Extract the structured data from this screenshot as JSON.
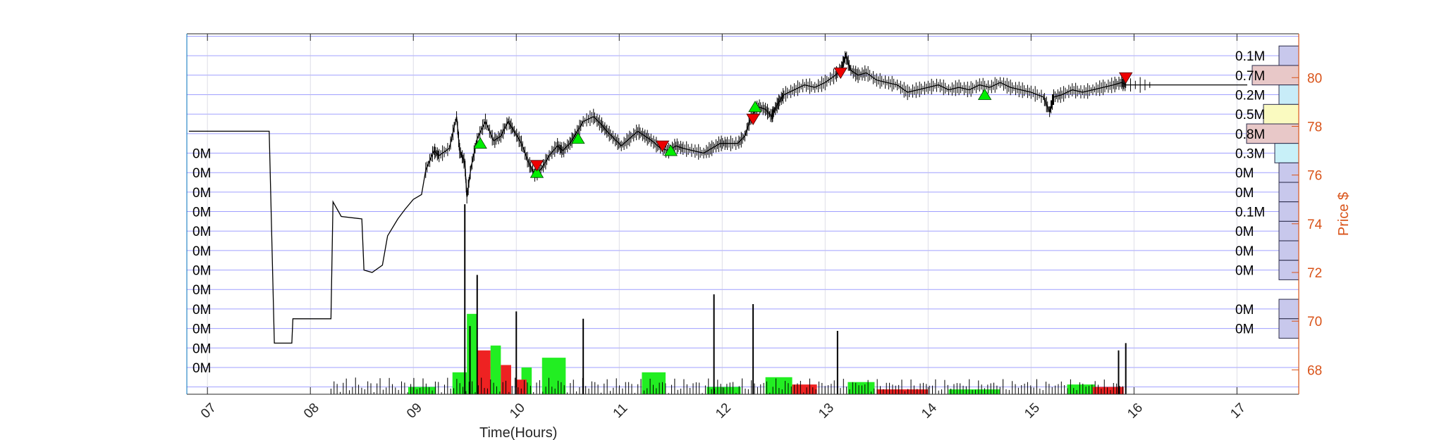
{
  "chart_data": {
    "type": "line",
    "title": "",
    "xlabel": "Time(Hours)",
    "ylabel_right": "Price $",
    "xlim": [
      6.8,
      17.6
    ],
    "ylim": [
      67.0,
      81.8
    ],
    "x_ticks": [
      "07",
      "08",
      "09",
      "10",
      "11",
      "12",
      "13",
      "14",
      "15",
      "16",
      "17"
    ],
    "x_tick_values": [
      7,
      8,
      9,
      10,
      11,
      12,
      13,
      14,
      15,
      16,
      17
    ],
    "y_ticks": [
      "68",
      "70",
      "72",
      "74",
      "76",
      "78",
      "80"
    ],
    "y_tick_values": [
      68,
      70,
      72,
      74,
      76,
      78,
      80
    ],
    "grid": true,
    "colors": {
      "price": "#000000",
      "grid": "#8080ff",
      "right_axis": "#d95319",
      "buy_marker": "#00ee00",
      "sell_marker": "#ee0000",
      "vol_up": "#22ee22",
      "vol_down": "#ee2222"
    },
    "price_series": {
      "name": "",
      "points": [
        [
          6.82,
          77.8
        ],
        [
          7.6,
          77.8
        ],
        [
          7.65,
          69.1
        ],
        [
          7.82,
          69.1
        ],
        [
          7.83,
          70.1
        ],
        [
          8.2,
          70.1
        ],
        [
          8.22,
          74.9
        ],
        [
          8.3,
          74.3
        ],
        [
          8.5,
          74.2
        ],
        [
          8.52,
          72.1
        ],
        [
          8.6,
          72.0
        ],
        [
          8.7,
          72.3
        ],
        [
          8.75,
          73.5
        ],
        [
          8.85,
          74.2
        ],
        [
          8.92,
          74.6
        ],
        [
          9.0,
          75.0
        ],
        [
          9.08,
          75.2
        ],
        [
          9.12,
          76.2
        ],
        [
          9.2,
          77.0
        ],
        [
          9.25,
          76.8
        ],
        [
          9.35,
          77.1
        ],
        [
          9.42,
          78.4
        ],
        [
          9.45,
          77.0
        ],
        [
          9.5,
          76.5
        ],
        [
          9.52,
          75.1
        ],
        [
          9.56,
          76.3
        ],
        [
          9.62,
          77.5
        ],
        [
          9.7,
          78.2
        ],
        [
          9.78,
          77.4
        ],
        [
          9.85,
          77.6
        ],
        [
          9.92,
          78.2
        ],
        [
          9.98,
          77.8
        ],
        [
          10.05,
          77.3
        ],
        [
          10.12,
          76.5
        ],
        [
          10.18,
          76.0
        ],
        [
          10.25,
          76.3
        ],
        [
          10.32,
          76.8
        ],
        [
          10.4,
          77.2
        ],
        [
          10.45,
          77.0
        ],
        [
          10.52,
          77.3
        ],
        [
          10.58,
          77.7
        ],
        [
          10.65,
          78.2
        ],
        [
          10.75,
          78.4
        ],
        [
          10.82,
          78.1
        ],
        [
          10.88,
          77.8
        ],
        [
          10.95,
          77.5
        ],
        [
          11.02,
          77.2
        ],
        [
          11.1,
          77.5
        ],
        [
          11.18,
          77.8
        ],
        [
          11.25,
          77.6
        ],
        [
          11.32,
          77.4
        ],
        [
          11.4,
          77.1
        ],
        [
          11.48,
          77.0
        ],
        [
          11.55,
          77.2
        ],
        [
          11.62,
          77.1
        ],
        [
          11.72,
          77.0
        ],
        [
          11.82,
          76.9
        ],
        [
          11.9,
          77.1
        ],
        [
          11.98,
          77.3
        ],
        [
          12.05,
          77.3
        ],
        [
          12.15,
          77.3
        ],
        [
          12.22,
          77.6
        ],
        [
          12.28,
          78.4
        ],
        [
          12.35,
          78.8
        ],
        [
          12.42,
          78.7
        ],
        [
          12.48,
          78.4
        ],
        [
          12.5,
          78.6
        ],
        [
          12.55,
          79.0
        ],
        [
          12.6,
          79.3
        ],
        [
          12.7,
          79.5
        ],
        [
          12.8,
          79.7
        ],
        [
          12.9,
          79.6
        ],
        [
          13.0,
          79.8
        ],
        [
          13.1,
          80.1
        ],
        [
          13.16,
          80.4
        ],
        [
          13.2,
          80.9
        ],
        [
          13.25,
          80.3
        ],
        [
          13.32,
          80.1
        ],
        [
          13.4,
          80.2
        ],
        [
          13.5,
          79.9
        ],
        [
          13.6,
          79.8
        ],
        [
          13.7,
          79.7
        ],
        [
          13.8,
          79.4
        ],
        [
          13.9,
          79.5
        ],
        [
          14.0,
          79.6
        ],
        [
          14.1,
          79.7
        ],
        [
          14.2,
          79.5
        ],
        [
          14.3,
          79.6
        ],
        [
          14.4,
          79.5
        ],
        [
          14.5,
          79.7
        ],
        [
          14.6,
          79.6
        ],
        [
          14.7,
          79.8
        ],
        [
          14.8,
          79.6
        ],
        [
          14.9,
          79.5
        ],
        [
          15.0,
          79.4
        ],
        [
          15.12,
          79.2
        ],
        [
          15.18,
          78.6
        ],
        [
          15.22,
          79.2
        ],
        [
          15.3,
          79.3
        ],
        [
          15.4,
          79.5
        ],
        [
          15.5,
          79.4
        ],
        [
          15.6,
          79.5
        ],
        [
          15.7,
          79.6
        ],
        [
          15.8,
          79.7
        ],
        [
          15.88,
          79.8
        ],
        [
          15.92,
          79.7
        ],
        [
          16.2,
          79.7
        ],
        [
          17.1,
          79.7
        ]
      ]
    },
    "buy_markers": [
      {
        "x": 9.65,
        "y": 77.3
      },
      {
        "x": 10.2,
        "y": 76.1
      },
      {
        "x": 10.6,
        "y": 77.5
      },
      {
        "x": 11.5,
        "y": 77.0
      },
      {
        "x": 12.32,
        "y": 78.8
      },
      {
        "x": 14.55,
        "y": 79.3
      }
    ],
    "sell_markers": [
      {
        "x": 10.2,
        "y": 76.4
      },
      {
        "x": 11.42,
        "y": 77.2
      },
      {
        "x": 12.3,
        "y": 78.3
      },
      {
        "x": 13.15,
        "y": 80.2
      },
      {
        "x": 15.92,
        "y": 80.0
      }
    ],
    "volume_profile": {
      "levels": [
        {
          "price": 80.9,
          "label": "0.1M",
          "value": 0.1,
          "color": "#c8c8ec"
        },
        {
          "price": 80.1,
          "label": "0.7M",
          "value": 0.7,
          "color": "#e8c8c8"
        },
        {
          "price": 79.3,
          "label": "0.2M",
          "value": 0.2,
          "color": "#c8ecf8"
        },
        {
          "price": 78.5,
          "label": "0.5M",
          "value": 0.5,
          "color": "#fafac0"
        },
        {
          "price": 77.7,
          "label": "0.8M",
          "value": 0.8,
          "color": "#e8c8c8"
        },
        {
          "price": 76.9,
          "label": "0.3M",
          "value": 0.3,
          "color": "#c8f0f8"
        },
        {
          "price": 76.1,
          "label": "0M",
          "value": 0.05,
          "color": "#c8c8ec"
        },
        {
          "price": 75.3,
          "label": "0M",
          "value": 0.05,
          "color": "#c8c8ec"
        },
        {
          "price": 74.5,
          "label": "0.1M",
          "value": 0.1,
          "color": "#c8c8ec"
        },
        {
          "price": 73.7,
          "label": "0M",
          "value": 0.05,
          "color": "#c8c8ec"
        },
        {
          "price": 72.9,
          "label": "0M",
          "value": 0.05,
          "color": "#c8c8ec"
        },
        {
          "price": 72.1,
          "label": "0M",
          "value": 0.05,
          "color": "#c8c8ec"
        },
        {
          "price": 70.5,
          "label": "0M",
          "value": 0.05,
          "color": "#c8c8ec"
        },
        {
          "price": 69.7,
          "label": "0M",
          "value": 0.05,
          "color": "#c8c8ec"
        }
      ],
      "left_labels": [
        {
          "price": 76.9,
          "label": "0M"
        },
        {
          "price": 76.1,
          "label": "0M"
        },
        {
          "price": 75.3,
          "label": "0M"
        },
        {
          "price": 74.5,
          "label": "0M"
        },
        {
          "price": 73.7,
          "label": "0M"
        },
        {
          "price": 72.9,
          "label": "0M"
        },
        {
          "price": 72.1,
          "label": "0M"
        },
        {
          "price": 71.3,
          "label": "0M"
        },
        {
          "price": 70.5,
          "label": "0M"
        },
        {
          "price": 69.7,
          "label": "0M"
        },
        {
          "price": 68.9,
          "label": "0M"
        },
        {
          "price": 68.1,
          "label": "0M"
        }
      ]
    },
    "volume_spikes": [
      [
        9.5,
        74.8
      ],
      [
        9.62,
        71.9
      ],
      [
        10.0,
        70.4
      ],
      [
        10.65,
        70.1
      ],
      [
        11.92,
        71.1
      ],
      [
        12.3,
        70.7
      ],
      [
        13.12,
        69.6
      ],
      [
        15.92,
        69.1
      ],
      [
        15.85,
        68.8
      ],
      [
        9.55,
        69.8
      ]
    ],
    "volume_blocks": [
      {
        "x0": 9.38,
        "x1": 9.52,
        "top": 67.9,
        "dir": "up"
      },
      {
        "x0": 9.52,
        "x1": 9.62,
        "top": 70.3,
        "dir": "up"
      },
      {
        "x0": 9.62,
        "x1": 9.75,
        "top": 68.8,
        "dir": "down"
      },
      {
        "x0": 9.75,
        "x1": 9.85,
        "top": 69.0,
        "dir": "up"
      },
      {
        "x0": 9.85,
        "x1": 9.95,
        "top": 68.2,
        "dir": "down"
      },
      {
        "x0": 10.05,
        "x1": 10.15,
        "top": 68.1,
        "dir": "up"
      },
      {
        "x0": 10.25,
        "x1": 10.48,
        "top": 68.5,
        "dir": "up"
      },
      {
        "x0": 10.0,
        "x1": 10.1,
        "top": 67.6,
        "dir": "down"
      },
      {
        "x0": 11.22,
        "x1": 11.45,
        "top": 67.9,
        "dir": "up"
      },
      {
        "x0": 12.42,
        "x1": 12.68,
        "top": 67.7,
        "dir": "up"
      },
      {
        "x0": 8.95,
        "x1": 9.22,
        "top": 67.3,
        "dir": "up"
      },
      {
        "x0": 13.22,
        "x1": 13.48,
        "top": 67.5,
        "dir": "up"
      },
      {
        "x0": 12.68,
        "x1": 12.92,
        "top": 67.4,
        "dir": "down"
      },
      {
        "x0": 15.35,
        "x1": 15.62,
        "top": 67.4,
        "dir": "up"
      },
      {
        "x0": 11.85,
        "x1": 12.18,
        "top": 67.3,
        "dir": "up"
      },
      {
        "x0": 13.5,
        "x1": 14.0,
        "top": 67.2,
        "dir": "down"
      },
      {
        "x0": 14.2,
        "x1": 14.7,
        "top": 67.2,
        "dir": "up"
      },
      {
        "x0": 15.6,
        "x1": 15.9,
        "top": 67.3,
        "dir": "down"
      }
    ]
  }
}
